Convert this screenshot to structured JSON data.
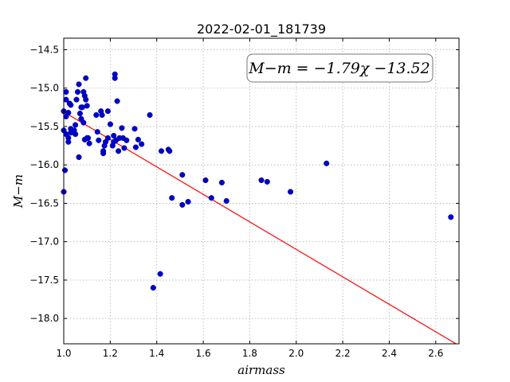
{
  "chart_data": {
    "type": "scatter",
    "title": "2022-02-01_181739",
    "xlabel": "airmass",
    "ylabel": "M−m",
    "xlim": [
      1.0,
      2.7
    ],
    "ylim": [
      -18.33,
      -14.35
    ],
    "y_inverted": true,
    "grid": true,
    "x_ticks": [
      "1.0",
      "1.2",
      "1.4",
      "1.6",
      "1.8",
      "2.0",
      "2.2",
      "2.4",
      "2.6"
    ],
    "y_ticks": [
      "−14.5",
      "−15.0",
      "−15.5",
      "−16.0",
      "−16.5",
      "−17.0",
      "−17.5",
      "−18.0"
    ],
    "annotation": "M−m = −1.79χ −13.52",
    "annotation_placement": "top-right",
    "fit_line": {
      "slope": -1.79,
      "intercept": -13.52,
      "color": "#ff0000"
    },
    "point_color": "#0000cc",
    "points": [
      [
        1.0,
        -15.55
      ],
      [
        1.0,
        -16.35
      ],
      [
        1.0,
        -15.3
      ],
      [
        1.005,
        -16.07
      ],
      [
        1.01,
        -15.05
      ],
      [
        1.01,
        -15.15
      ],
      [
        1.01,
        -15.37
      ],
      [
        1.01,
        -15.6
      ],
      [
        1.02,
        -15.32
      ],
      [
        1.02,
        -15.7
      ],
      [
        1.02,
        -15.65
      ],
      [
        1.025,
        -15.2
      ],
      [
        1.03,
        -15.53
      ],
      [
        1.03,
        -15.58
      ],
      [
        1.03,
        -15.22
      ],
      [
        1.045,
        -15.55
      ],
      [
        1.05,
        -15.6
      ],
      [
        1.05,
        -15.48
      ],
      [
        1.055,
        -15.15
      ],
      [
        1.06,
        -15.05
      ],
      [
        1.065,
        -14.95
      ],
      [
        1.065,
        -15.9
      ],
      [
        1.07,
        -15.33
      ],
      [
        1.075,
        -15.25
      ],
      [
        1.075,
        -15.4
      ],
      [
        1.08,
        -15.25
      ],
      [
        1.085,
        -15.45
      ],
      [
        1.085,
        -15.05
      ],
      [
        1.09,
        -15.1
      ],
      [
        1.09,
        -15.67
      ],
      [
        1.095,
        -15.15
      ],
      [
        1.095,
        -14.87
      ],
      [
        1.1,
        -15.23
      ],
      [
        1.1,
        -15.65
      ],
      [
        1.105,
        -15.65
      ],
      [
        1.11,
        -15.72
      ],
      [
        1.14,
        -15.35
      ],
      [
        1.145,
        -15.57
      ],
      [
        1.15,
        -15.68
      ],
      [
        1.16,
        -15.3
      ],
      [
        1.165,
        -15.35
      ],
      [
        1.17,
        -15.85
      ],
      [
        1.17,
        -15.82
      ],
      [
        1.175,
        -15.75
      ],
      [
        1.18,
        -15.7
      ],
      [
        1.19,
        -15.3
      ],
      [
        1.19,
        -15.65
      ],
      [
        1.2,
        -15.47
      ],
      [
        1.21,
        -15.75
      ],
      [
        1.215,
        -15.62
      ],
      [
        1.215,
        -15.7
      ],
      [
        1.22,
        -14.82
      ],
      [
        1.22,
        -14.87
      ],
      [
        1.225,
        -15.68
      ],
      [
        1.23,
        -15.17
      ],
      [
        1.235,
        -15.82
      ],
      [
        1.24,
        -15.65
      ],
      [
        1.25,
        -15.52
      ],
      [
        1.255,
        -15.65
      ],
      [
        1.26,
        -15.78
      ],
      [
        1.27,
        -15.68
      ],
      [
        1.305,
        -15.53
      ],
      [
        1.31,
        -15.77
      ],
      [
        1.32,
        -15.67
      ],
      [
        1.335,
        -15.73
      ],
      [
        1.37,
        -15.35
      ],
      [
        1.385,
        -17.6
      ],
      [
        1.415,
        -17.42
      ],
      [
        1.42,
        -15.82
      ],
      [
        1.45,
        -15.8
      ],
      [
        1.455,
        -15.82
      ],
      [
        1.465,
        -16.43
      ],
      [
        1.51,
        -16.13
      ],
      [
        1.51,
        -16.52
      ],
      [
        1.535,
        -16.48
      ],
      [
        1.61,
        -16.2
      ],
      [
        1.635,
        -16.43
      ],
      [
        1.68,
        -16.23
      ],
      [
        1.7,
        -16.47
      ],
      [
        1.85,
        -16.2
      ],
      [
        1.875,
        -16.22
      ],
      [
        1.975,
        -16.35
      ],
      [
        2.13,
        -15.98
      ],
      [
        2.665,
        -16.68
      ]
    ]
  }
}
